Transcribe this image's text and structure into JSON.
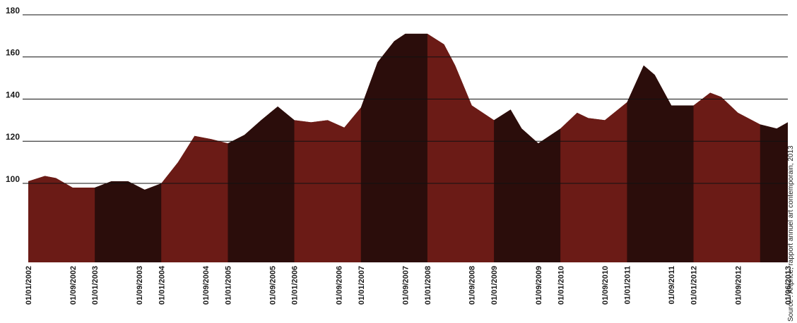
{
  "chart_data": {
    "type": "area",
    "source": "Source : Artprice, rapport annuel art contemporain, 2013",
    "x": [
      "01/01/2002",
      "01/04/2002",
      "01/06/2002",
      "01/09/2002",
      "01/01/2003",
      "01/04/2003",
      "01/07/2003",
      "01/10/2003",
      "01/01/2004",
      "01/04/2004",
      "01/07/2004",
      "01/10/2004",
      "01/01/2005",
      "01/04/2005",
      "01/07/2005",
      "01/10/2005",
      "01/01/2006",
      "01/04/2006",
      "01/07/2006",
      "01/10/2006",
      "01/01/2007",
      "01/04/2007",
      "01/07/2007",
      "01/09/2007",
      "01/01/2008",
      "01/04/2008",
      "01/06/2008",
      "01/09/2008",
      "01/01/2009",
      "01/04/2009",
      "01/06/2009",
      "01/09/2009",
      "01/01/2010",
      "01/04/2010",
      "01/06/2010",
      "01/09/2010",
      "01/01/2011",
      "01/04/2011",
      "01/06/2011",
      "01/09/2011",
      "01/01/2012",
      "01/04/2012",
      "01/06/2012",
      "01/09/2012",
      "01/01/2013",
      "01/04/2013",
      "01/06/2013"
    ],
    "values": [
      101,
      103.5,
      102.5,
      98,
      98,
      101,
      101,
      97,
      100,
      110,
      122.5,
      121,
      119,
      123,
      130,
      136.5,
      130,
      129,
      130,
      126.5,
      136,
      157.5,
      167.5,
      171,
      171,
      166,
      156,
      137,
      130,
      135,
      126,
      119,
      126,
      133.5,
      131,
      130,
      138.5,
      156,
      151.5,
      137,
      137,
      143,
      141,
      133.5,
      128,
      126,
      129
    ],
    "band_colors": [
      "#6b1b16",
      "#2b0d0b"
    ],
    "xlim": [
      "01/01/2002",
      "01/06/2013"
    ],
    "xticks": [
      "01/01/2002",
      "01/09/2002",
      "01/01/2003",
      "01/09/2003",
      "01/01/2004",
      "01/09/2004",
      "01/01/2005",
      "01/09/2005",
      "01/01/2006",
      "01/09/2006",
      "01/01/2007",
      "01/09/2007",
      "01/01/2008",
      "01/09/2008",
      "01/01/2009",
      "01/09/2009",
      "01/01/2010",
      "01/09/2010",
      "01/01/2011",
      "01/09/2011",
      "01/01/2012",
      "01/09/2012",
      "01/06/2013"
    ],
    "ylim": [
      62.5,
      180
    ],
    "yticks": [
      100,
      120,
      140,
      160,
      180
    ],
    "grid": true
  }
}
